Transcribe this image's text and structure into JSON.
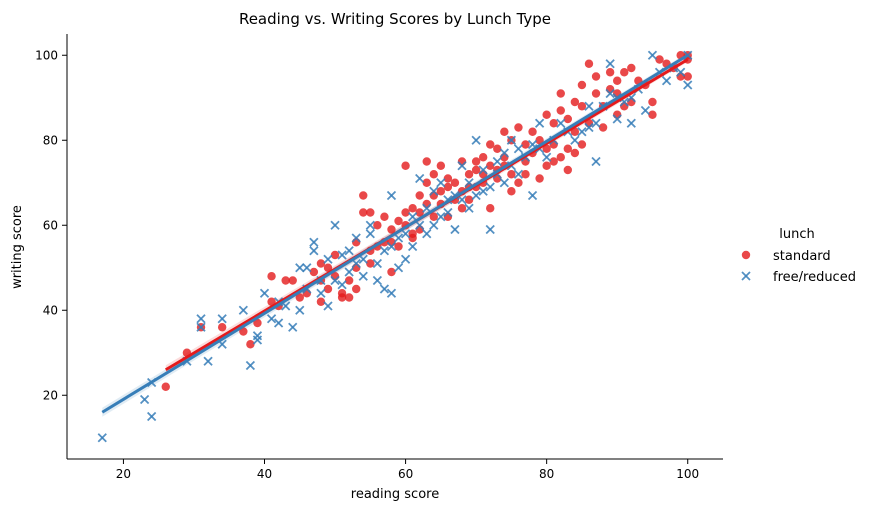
{
  "chart_data": {
    "type": "scatter",
    "title": "Reading vs. Writing Scores by Lunch Type",
    "xlabel": "reading score",
    "ylabel": "writing score",
    "xlim": [
      12,
      105
    ],
    "ylim": [
      5,
      105
    ],
    "xticks": [
      20,
      40,
      60,
      80,
      100
    ],
    "yticks": [
      20,
      40,
      60,
      80,
      100
    ],
    "grid": false,
    "legend": {
      "title": "lunch",
      "placement": "right"
    },
    "series": [
      {
        "name": "standard",
        "marker": "circle",
        "color": "#e41a1c",
        "points": [
          [
            26,
            22
          ],
          [
            29,
            30
          ],
          [
            31,
            36
          ],
          [
            34,
            36
          ],
          [
            37,
            35
          ],
          [
            38,
            32
          ],
          [
            39,
            37
          ],
          [
            41,
            48
          ],
          [
            41,
            42
          ],
          [
            42,
            41
          ],
          [
            43,
            47
          ],
          [
            44,
            47
          ],
          [
            45,
            43
          ],
          [
            46,
            44
          ],
          [
            47,
            49
          ],
          [
            48,
            51
          ],
          [
            48,
            47
          ],
          [
            48,
            42
          ],
          [
            49,
            50
          ],
          [
            49,
            45
          ],
          [
            50,
            48
          ],
          [
            50,
            53
          ],
          [
            51,
            43
          ],
          [
            51,
            44
          ],
          [
            52,
            43
          ],
          [
            52,
            47
          ],
          [
            53,
            50
          ],
          [
            53,
            56
          ],
          [
            53,
            45
          ],
          [
            54,
            63
          ],
          [
            54,
            67
          ],
          [
            55,
            51
          ],
          [
            55,
            54
          ],
          [
            55,
            63
          ],
          [
            56,
            55
          ],
          [
            56,
            60
          ],
          [
            57,
            56
          ],
          [
            57,
            62
          ],
          [
            58,
            56
          ],
          [
            58,
            59
          ],
          [
            58,
            49
          ],
          [
            59,
            61
          ],
          [
            59,
            55
          ],
          [
            60,
            63
          ],
          [
            60,
            60
          ],
          [
            60,
            74
          ],
          [
            61,
            58
          ],
          [
            61,
            57
          ],
          [
            61,
            64
          ],
          [
            62,
            63
          ],
          [
            62,
            67
          ],
          [
            62,
            59
          ],
          [
            63,
            65
          ],
          [
            63,
            70
          ],
          [
            63,
            75
          ],
          [
            64,
            67
          ],
          [
            64,
            62
          ],
          [
            64,
            72
          ],
          [
            65,
            68
          ],
          [
            65,
            65
          ],
          [
            65,
            74
          ],
          [
            66,
            69
          ],
          [
            66,
            71
          ],
          [
            66,
            62
          ],
          [
            67,
            66
          ],
          [
            67,
            70
          ],
          [
            68,
            64
          ],
          [
            68,
            68
          ],
          [
            68,
            75
          ],
          [
            69,
            72
          ],
          [
            69,
            69
          ],
          [
            69,
            66
          ],
          [
            70,
            73
          ],
          [
            70,
            69
          ],
          [
            70,
            75
          ],
          [
            71,
            72
          ],
          [
            71,
            70
          ],
          [
            71,
            76
          ],
          [
            72,
            79
          ],
          [
            72,
            74
          ],
          [
            72,
            64
          ],
          [
            73,
            73
          ],
          [
            73,
            71
          ],
          [
            73,
            78
          ],
          [
            74,
            74
          ],
          [
            74,
            76
          ],
          [
            74,
            82
          ],
          [
            75,
            68
          ],
          [
            75,
            72
          ],
          [
            75,
            80
          ],
          [
            76,
            83
          ],
          [
            76,
            70
          ],
          [
            77,
            75
          ],
          [
            77,
            79
          ],
          [
            77,
            72
          ],
          [
            78,
            77
          ],
          [
            78,
            82
          ],
          [
            79,
            80
          ],
          [
            79,
            71
          ],
          [
            80,
            78
          ],
          [
            80,
            86
          ],
          [
            80,
            74
          ],
          [
            81,
            79
          ],
          [
            81,
            75
          ],
          [
            81,
            84
          ],
          [
            82,
            87
          ],
          [
            82,
            76
          ],
          [
            82,
            91
          ],
          [
            83,
            78
          ],
          [
            83,
            73
          ],
          [
            83,
            85
          ],
          [
            84,
            82
          ],
          [
            84,
            77
          ],
          [
            84,
            89
          ],
          [
            85,
            79
          ],
          [
            85,
            93
          ],
          [
            85,
            88
          ],
          [
            86,
            98
          ],
          [
            86,
            84
          ],
          [
            87,
            91
          ],
          [
            87,
            95
          ],
          [
            88,
            88
          ],
          [
            88,
            83
          ],
          [
            89,
            92
          ],
          [
            89,
            96
          ],
          [
            90,
            91
          ],
          [
            90,
            86
          ],
          [
            90,
            94
          ],
          [
            91,
            88
          ],
          [
            91,
            96
          ],
          [
            92,
            89
          ],
          [
            92,
            97
          ],
          [
            93,
            94
          ],
          [
            94,
            93
          ],
          [
            95,
            86
          ],
          [
            95,
            89
          ],
          [
            96,
            99
          ],
          [
            97,
            98
          ],
          [
            98,
            97
          ],
          [
            99,
            100
          ],
          [
            99,
            95
          ],
          [
            100,
            100
          ],
          [
            100,
            95
          ],
          [
            100,
            99
          ]
        ],
        "regression": [
          [
            26,
            26
          ],
          [
            100,
            99
          ]
        ]
      },
      {
        "name": "free/reduced",
        "marker": "x",
        "color": "#377eb8",
        "points": [
          [
            17,
            10
          ],
          [
            23,
            19
          ],
          [
            24,
            15
          ],
          [
            24,
            23
          ],
          [
            29,
            28
          ],
          [
            31,
            38
          ],
          [
            31,
            36
          ],
          [
            32,
            28
          ],
          [
            34,
            38
          ],
          [
            34,
            32
          ],
          [
            37,
            40
          ],
          [
            38,
            27
          ],
          [
            39,
            33
          ],
          [
            39,
            34
          ],
          [
            40,
            44
          ],
          [
            41,
            38
          ],
          [
            42,
            37
          ],
          [
            42,
            42
          ],
          [
            43,
            41
          ],
          [
            44,
            36
          ],
          [
            45,
            40
          ],
          [
            45,
            50
          ],
          [
            46,
            50
          ],
          [
            46,
            45
          ],
          [
            47,
            54
          ],
          [
            47,
            56
          ],
          [
            48,
            47
          ],
          [
            48,
            44
          ],
          [
            49,
            41
          ],
          [
            49,
            52
          ],
          [
            50,
            60
          ],
          [
            50,
            47
          ],
          [
            51,
            53
          ],
          [
            51,
            46
          ],
          [
            52,
            49
          ],
          [
            52,
            54
          ],
          [
            53,
            51
          ],
          [
            53,
            57
          ],
          [
            54,
            52
          ],
          [
            54,
            48
          ],
          [
            55,
            58
          ],
          [
            55,
            60
          ],
          [
            56,
            47
          ],
          [
            56,
            51
          ],
          [
            57,
            54
          ],
          [
            57,
            45
          ],
          [
            58,
            44
          ],
          [
            58,
            55
          ],
          [
            58,
            67
          ],
          [
            59,
            50
          ],
          [
            59,
            57
          ],
          [
            60,
            52
          ],
          [
            60,
            58
          ],
          [
            61,
            55
          ],
          [
            61,
            62
          ],
          [
            62,
            60
          ],
          [
            62,
            71
          ],
          [
            63,
            58
          ],
          [
            63,
            64
          ],
          [
            64,
            60
          ],
          [
            64,
            68
          ],
          [
            65,
            62
          ],
          [
            65,
            70
          ],
          [
            66,
            63
          ],
          [
            66,
            66
          ],
          [
            67,
            67
          ],
          [
            67,
            59
          ],
          [
            68,
            66
          ],
          [
            68,
            74
          ],
          [
            69,
            64
          ],
          [
            69,
            70
          ],
          [
            70,
            67
          ],
          [
            70,
            80
          ],
          [
            71,
            68
          ],
          [
            71,
            73
          ],
          [
            72,
            59
          ],
          [
            72,
            69
          ],
          [
            73,
            72
          ],
          [
            73,
            75
          ],
          [
            74,
            70
          ],
          [
            74,
            77
          ],
          [
            75,
            74
          ],
          [
            75,
            80
          ],
          [
            76,
            72
          ],
          [
            76,
            78
          ],
          [
            77,
            76
          ],
          [
            78,
            67
          ],
          [
            78,
            79
          ],
          [
            79,
            84
          ],
          [
            79,
            78
          ],
          [
            80,
            76
          ],
          [
            81,
            80
          ],
          [
            82,
            84
          ],
          [
            83,
            82
          ],
          [
            84,
            80
          ],
          [
            85,
            82
          ],
          [
            86,
            88
          ],
          [
            86,
            83
          ],
          [
            87,
            84
          ],
          [
            87,
            75
          ],
          [
            88,
            88
          ],
          [
            89,
            91
          ],
          [
            89,
            98
          ],
          [
            90,
            85
          ],
          [
            90,
            90
          ],
          [
            91,
            89
          ],
          [
            92,
            84
          ],
          [
            92,
            90
          ],
          [
            93,
            92
          ],
          [
            94,
            87
          ],
          [
            95,
            100
          ],
          [
            96,
            96
          ],
          [
            97,
            94
          ],
          [
            98,
            97
          ],
          [
            99,
            96
          ],
          [
            100,
            93
          ],
          [
            100,
            100
          ]
        ],
        "regression": [
          [
            17,
            16
          ],
          [
            100,
            100
          ]
        ]
      }
    ]
  }
}
